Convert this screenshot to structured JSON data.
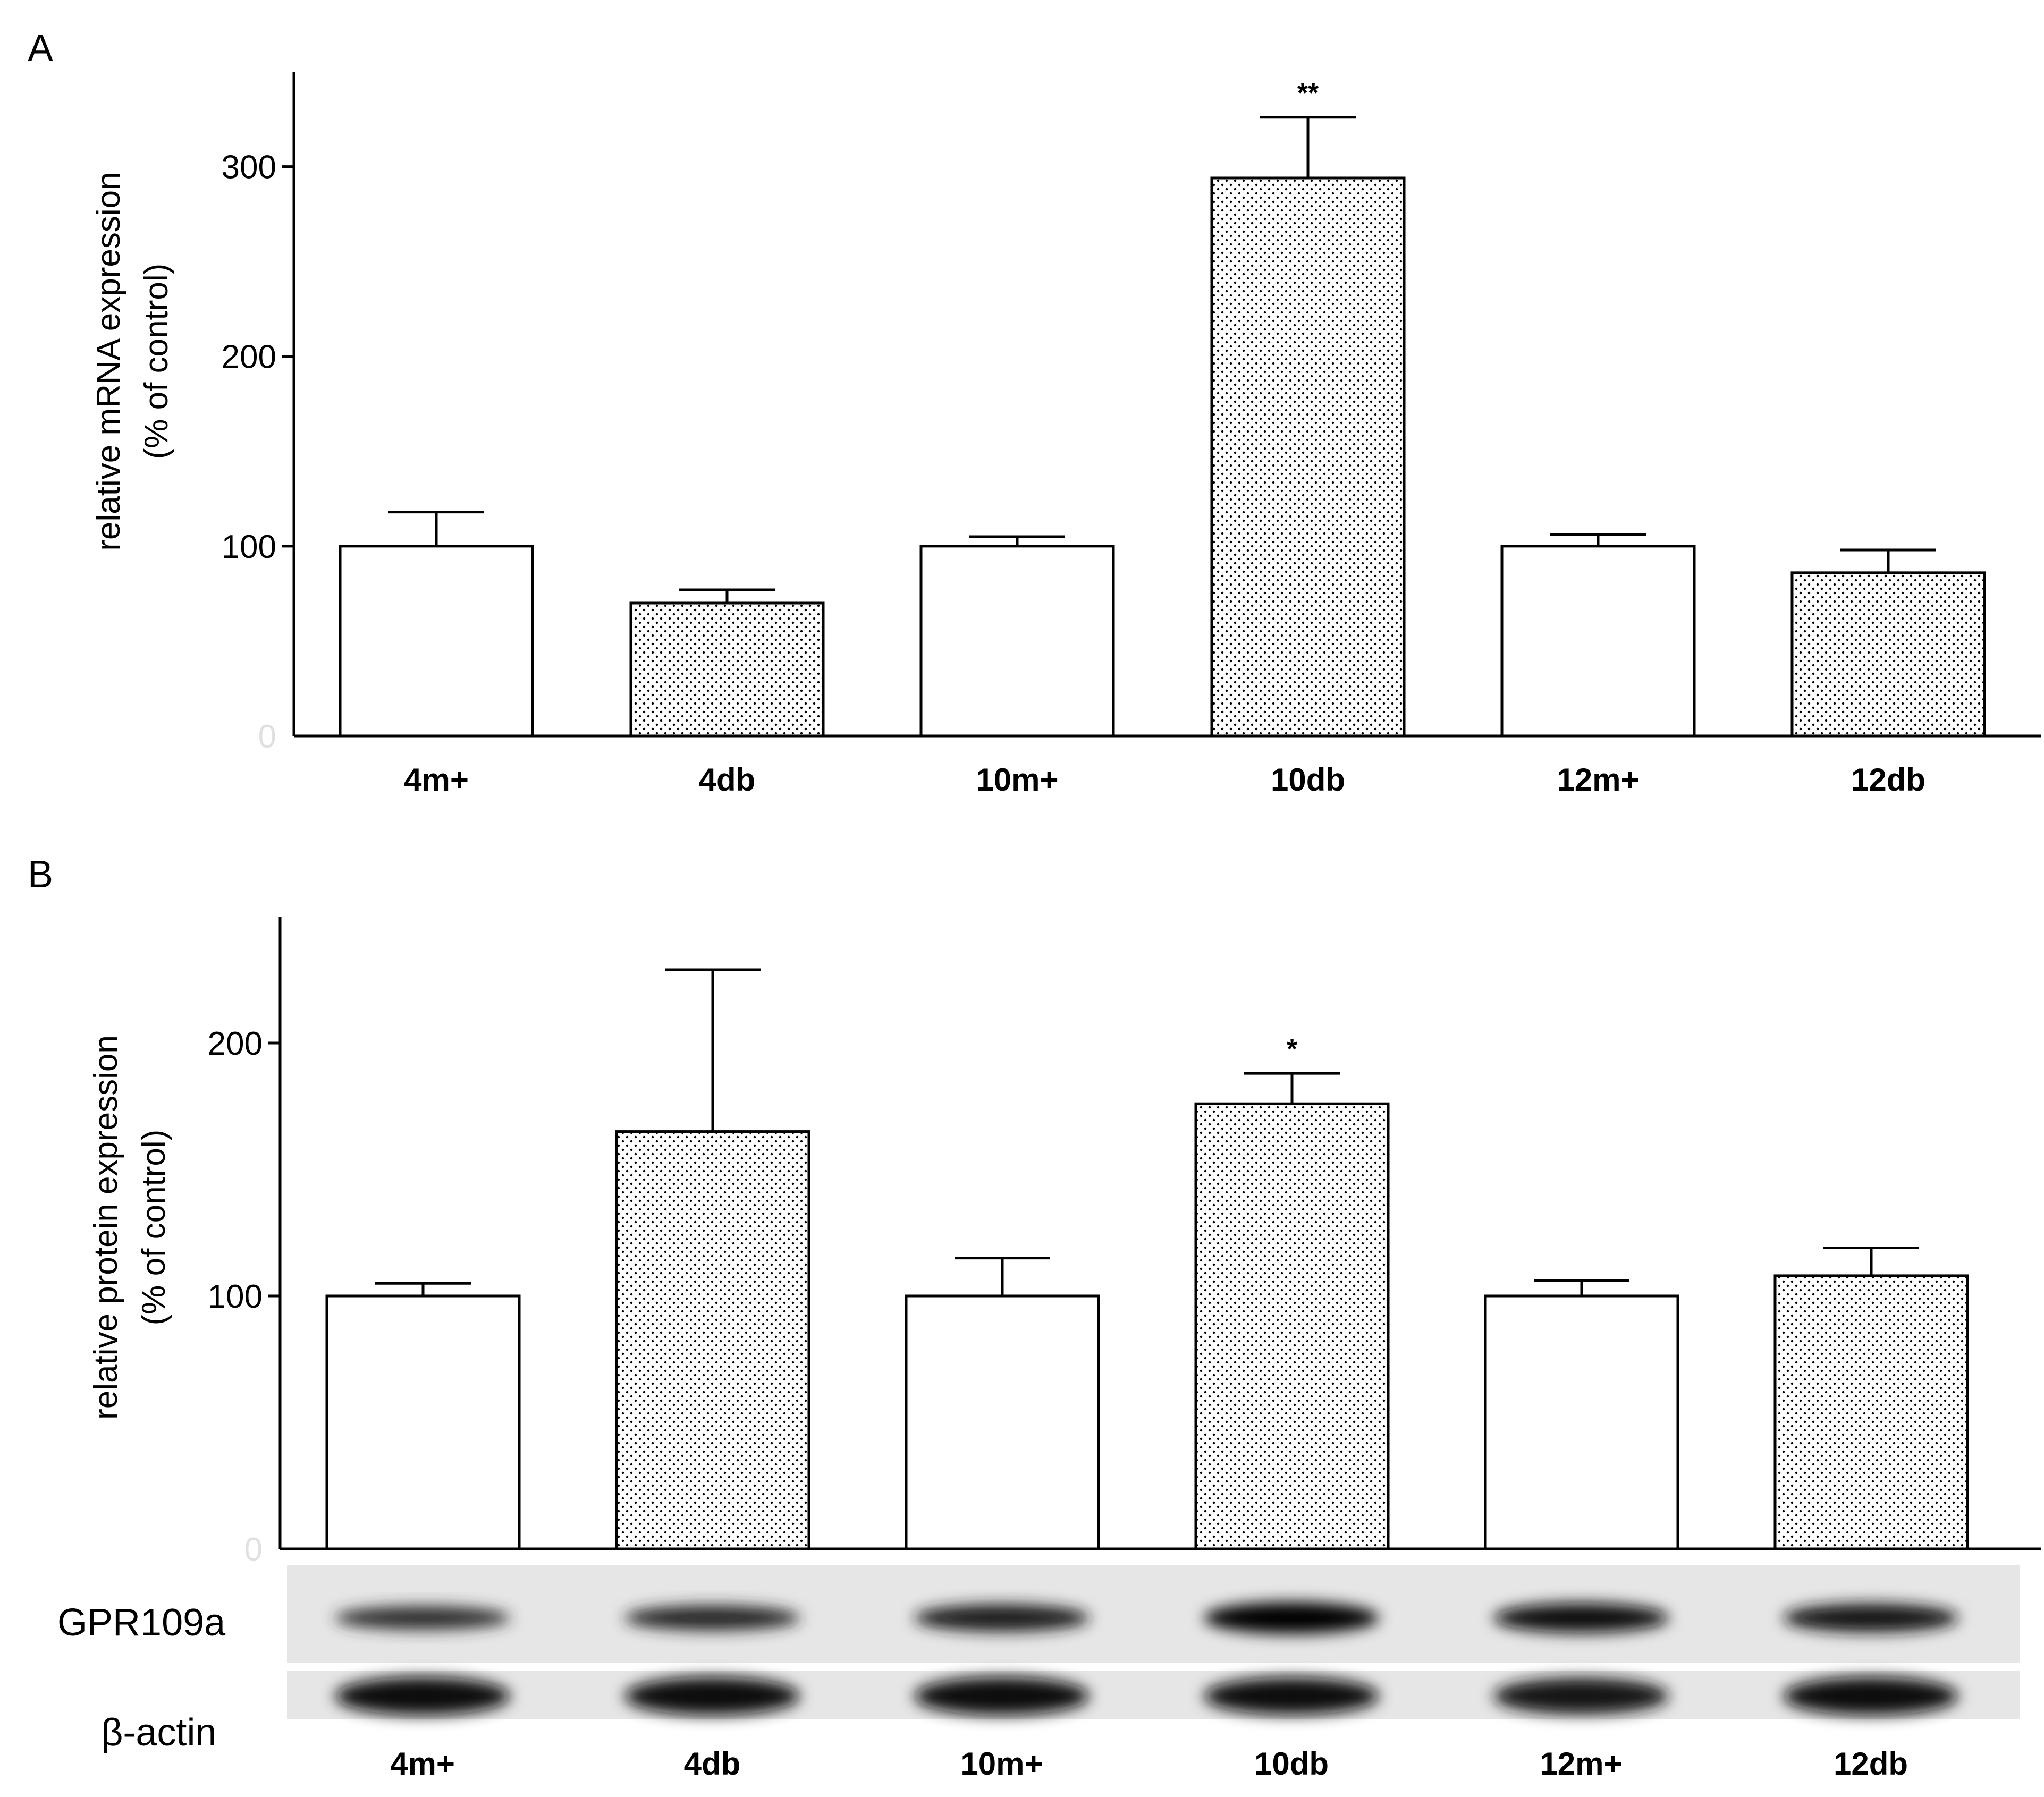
{
  "chart_data": [
    {
      "type": "bar",
      "panel": "A",
      "categories": [
        "4m+",
        "4db",
        "10m+",
        "10db",
        "12m+",
        "12db"
      ],
      "values": [
        100,
        70,
        100,
        294,
        100,
        86
      ],
      "errors": [
        18,
        7,
        5,
        32,
        6,
        12
      ],
      "patterns": [
        "open",
        "dotted",
        "open",
        "dotted",
        "open",
        "dotted"
      ],
      "significance": [
        "",
        "",
        "",
        "**",
        "",
        ""
      ],
      "ylabel_lines": [
        "relative mRNA expression",
        "(% of control)"
      ],
      "yticks": [
        0,
        100,
        200,
        300
      ],
      "ytick_labels": [
        "0",
        "100",
        "200",
        "300"
      ],
      "ylim": [
        0,
        350
      ]
    },
    {
      "type": "bar",
      "panel": "B",
      "categories": [
        "4m+",
        "4db",
        "10m+",
        "10db",
        "12m+",
        "12db"
      ],
      "values": [
        100,
        165,
        100,
        176,
        100,
        108
      ],
      "errors": [
        5,
        64,
        15,
        12,
        6,
        11
      ],
      "patterns": [
        "open",
        "dotted",
        "open",
        "dotted",
        "open",
        "dotted"
      ],
      "significance": [
        "",
        "",
        "",
        "*",
        "",
        ""
      ],
      "ylabel_lines": [
        "relative protein expression",
        "(% of control)"
      ],
      "yticks": [
        0,
        100,
        200
      ],
      "ytick_labels": [
        "0",
        "100",
        "200"
      ],
      "ylim": [
        0,
        250
      ]
    }
  ],
  "western_blot": {
    "rows": [
      {
        "label": "GPR109a",
        "intensities": [
          0.45,
          0.55,
          0.7,
          1.0,
          0.85,
          0.8
        ]
      },
      {
        "label": "β-actin",
        "intensities": [
          0.9,
          0.9,
          0.9,
          0.85,
          0.8,
          0.9
        ]
      }
    ],
    "lanes": [
      "4m+",
      "4db",
      "10m+",
      "10db",
      "12m+",
      "12db"
    ]
  }
}
